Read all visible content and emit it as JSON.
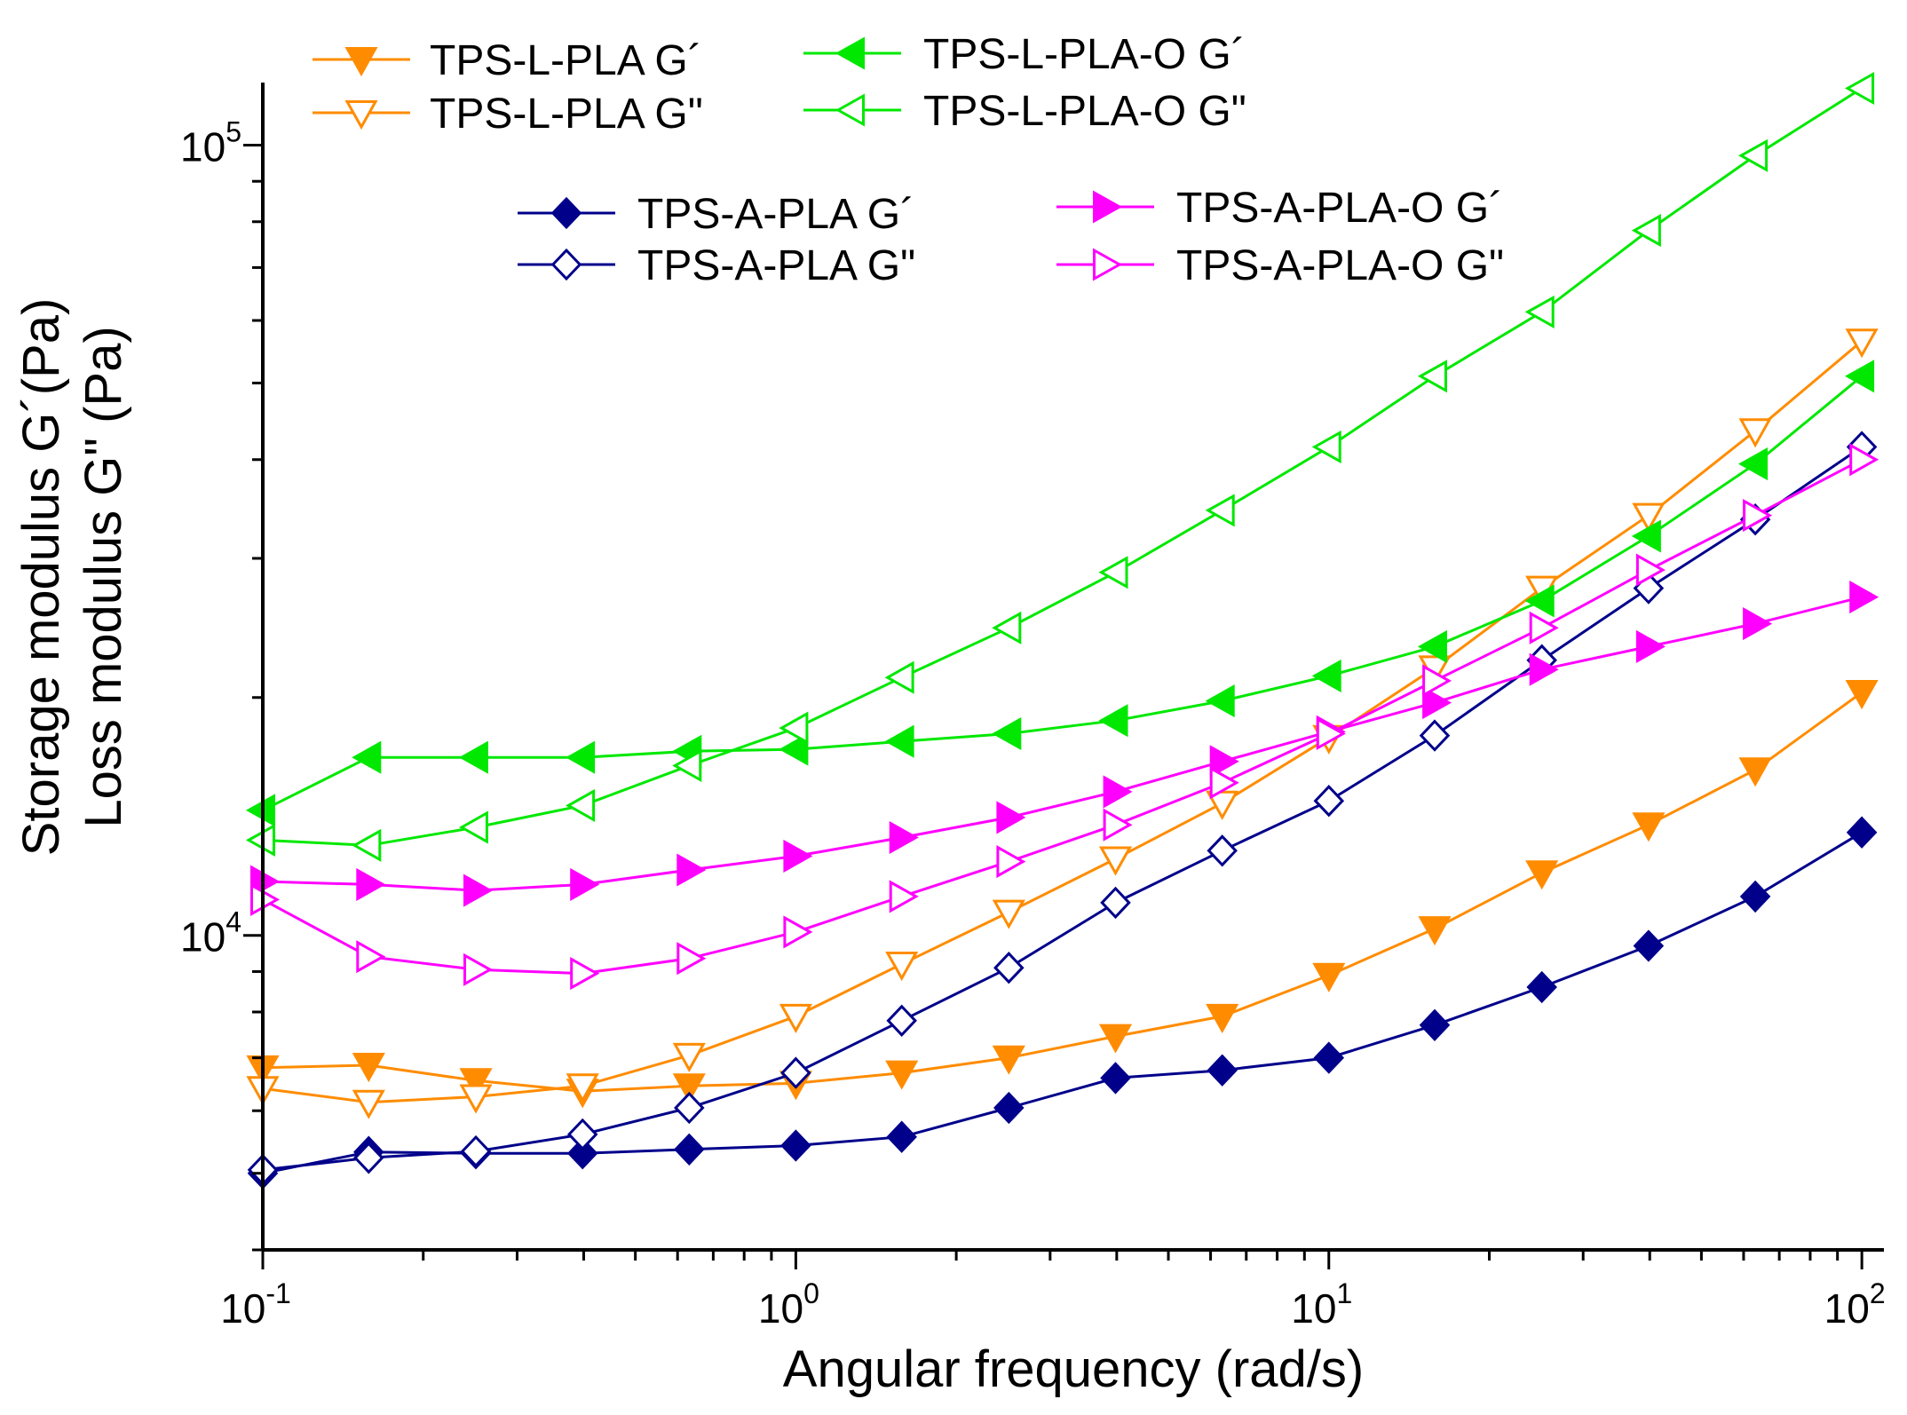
{
  "chart_data": {
    "type": "line",
    "xlabel": "Angular frequency (rad/s)",
    "ylabel": [
      "Storage modulus G´(Pa)",
      "Loss modulus G\" (Pa)"
    ],
    "xscale": "log",
    "yscale": "log",
    "xlim": [
      0.1,
      110
    ],
    "ylim": [
      4000,
      120000
    ],
    "grid": false,
    "x_ticks": [
      {
        "base": "10",
        "exp": "-1"
      },
      {
        "base": "10",
        "exp": "0"
      },
      {
        "base": "10",
        "exp": "1"
      },
      {
        "base": "10",
        "exp": "2"
      }
    ],
    "y_ticks": [
      {
        "base": "10",
        "exp": "4"
      },
      {
        "base": "10",
        "exp": "5"
      }
    ],
    "x": [
      0.1,
      0.158,
      0.251,
      0.398,
      0.631,
      1.0,
      1.58,
      2.51,
      3.98,
      6.31,
      10.0,
      15.8,
      25.1,
      39.8,
      63.1,
      100.0
    ],
    "series": [
      {
        "name": "TPS-L-PLA G´",
        "color": "#ff8c00",
        "marker": "triangle-down",
        "filled": true,
        "values": [
          6800,
          6850,
          6550,
          6350,
          6450,
          6500,
          6700,
          7000,
          7450,
          7900,
          8900,
          10200,
          12000,
          13800,
          16200,
          20300
        ]
      },
      {
        "name": "TPS-L-PLA G\"",
        "color": "#ff8c00",
        "marker": "triangle-down",
        "filled": false,
        "values": [
          6400,
          6150,
          6250,
          6450,
          7050,
          7900,
          9200,
          10700,
          12500,
          14700,
          17800,
          21800,
          27500,
          34000,
          43500,
          56500
        ]
      },
      {
        "name": "TPS-L-PLA-O G´",
        "color": "#00e800",
        "marker": "triangle-left",
        "filled": true,
        "values": [
          14400,
          16800,
          16800,
          16800,
          17100,
          17200,
          17600,
          18000,
          18700,
          19800,
          21300,
          23200,
          26500,
          32000,
          39500,
          51000
        ]
      },
      {
        "name": "TPS-L-PLA-O G\"",
        "color": "#00e800",
        "marker": "triangle-left",
        "filled": false,
        "values": [
          13200,
          13000,
          13700,
          14600,
          16400,
          18300,
          21200,
          24500,
          28800,
          34500,
          41500,
          51000,
          61500,
          78000,
          97000,
          118000
        ]
      },
      {
        "name": "TPS-A-PLA G´",
        "color": "#00008b",
        "marker": "diamond",
        "filled": true,
        "values": [
          5000,
          5320,
          5300,
          5300,
          5360,
          5420,
          5560,
          6050,
          6600,
          6750,
          7000,
          7700,
          8600,
          9700,
          11200,
          13500
        ]
      },
      {
        "name": "TPS-A-PLA G\"",
        "color": "#00008b",
        "marker": "diamond",
        "filled": false,
        "values": [
          5050,
          5230,
          5330,
          5600,
          6050,
          6700,
          7800,
          9100,
          11000,
          12800,
          14800,
          17900,
          22300,
          27500,
          33600,
          41500
        ]
      },
      {
        "name": "TPS-A-PLA-O G´",
        "color": "#ff00ff",
        "marker": "triangle-right",
        "filled": true,
        "values": [
          11700,
          11600,
          11400,
          11600,
          12100,
          12600,
          13300,
          14100,
          15200,
          16600,
          18100,
          19700,
          21700,
          23200,
          24800,
          26800
        ]
      },
      {
        "name": "TPS-A-PLA-O G\"",
        "color": "#ff00ff",
        "marker": "triangle-right",
        "filled": false,
        "values": [
          11100,
          9400,
          9050,
          8950,
          9350,
          10100,
          11200,
          12400,
          13800,
          15600,
          18000,
          21000,
          24500,
          29000,
          34000,
          40000
        ]
      }
    ]
  }
}
